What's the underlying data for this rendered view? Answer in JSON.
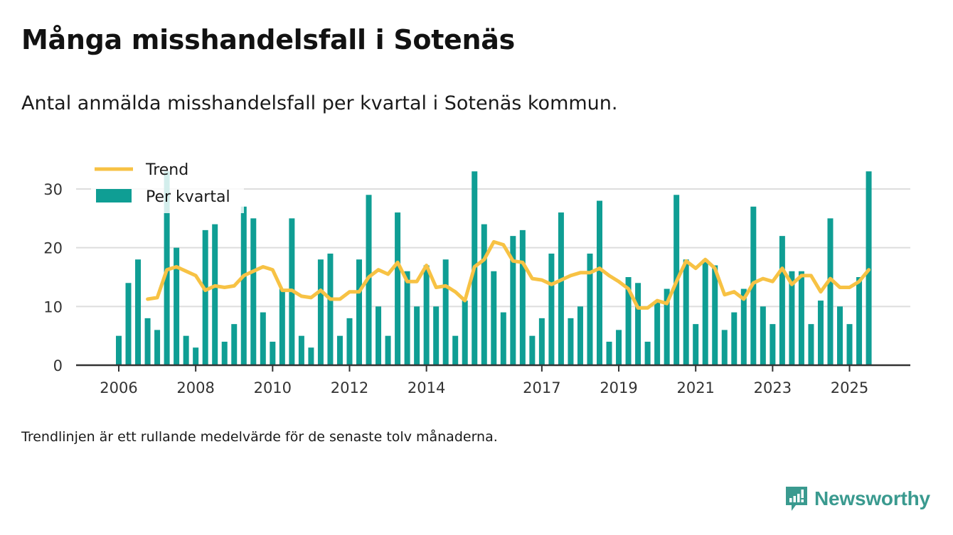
{
  "header": {
    "title": "Många misshandelsfall i Sotenäs",
    "subtitle": "Antal anmälda misshandelsfall per kvartal i Sotenäs kommun."
  },
  "footnote": "Trendlinjen är ett rullande medelvärde för de senaste tolv månaderna.",
  "brand": {
    "name": "Newsworthy",
    "color": "#3a9a8f",
    "icon": "chart-speech-bubble-icon"
  },
  "colors": {
    "bar": "#0f9e94",
    "trend": "#f7c244",
    "grid": "#dddddd",
    "axis": "#333333"
  },
  "chart_data": {
    "type": "bar",
    "title": "Många misshandelsfall i Sotenäs",
    "subtitle": "Antal anmälda misshandelsfall per kvartal i Sotenäs kommun.",
    "xlabel": "",
    "ylabel": "",
    "ylim": [
      0,
      33
    ],
    "yticks": [
      0,
      10,
      20,
      30
    ],
    "grid": true,
    "legend_position": "top-left",
    "x_start": "2006-Q1",
    "xtick_labels": [
      {
        "label": "2006",
        "index": 0
      },
      {
        "label": "2008",
        "index": 8
      },
      {
        "label": "2010",
        "index": 16
      },
      {
        "label": "2012",
        "index": 24
      },
      {
        "label": "2014",
        "index": 32
      },
      {
        "label": "2017",
        "index": 44
      },
      {
        "label": "2019",
        "index": 52
      },
      {
        "label": "2021",
        "index": 60
      },
      {
        "label": "2023",
        "index": 68
      },
      {
        "label": "2025",
        "index": 76
      }
    ],
    "series": [
      {
        "name": "Per kvartal",
        "type": "bar",
        "values": [
          5,
          14,
          18,
          8,
          6,
          33,
          20,
          5,
          3,
          23,
          24,
          4,
          7,
          27,
          25,
          9,
          4,
          13,
          25,
          5,
          3,
          18,
          19,
          5,
          8,
          18,
          29,
          10,
          5,
          26,
          16,
          10,
          17,
          10,
          18,
          5,
          11,
          33,
          24,
          16,
          9,
          22,
          23,
          5,
          8,
          19,
          26,
          8,
          10,
          19,
          28,
          4,
          6,
          15,
          14,
          4,
          11,
          13,
          29,
          18,
          7,
          18,
          17,
          6,
          9,
          13,
          27,
          10,
          7,
          22,
          16,
          16,
          7,
          11,
          25,
          10,
          7,
          15,
          33
        ]
      },
      {
        "name": "Trend",
        "type": "line",
        "start_index": 3,
        "values": [
          11.25,
          11.5,
          16.25,
          16.75,
          16.0,
          15.25,
          12.75,
          13.5,
          13.25,
          13.5,
          15.25,
          16.0,
          16.75,
          16.25,
          12.75,
          12.75,
          11.75,
          11.5,
          12.75,
          11.25,
          11.25,
          12.5,
          12.5,
          15.0,
          16.25,
          15.5,
          17.5,
          14.25,
          14.25,
          17.0,
          13.25,
          13.5,
          12.5,
          11.0,
          16.75,
          18.0,
          21.0,
          20.5,
          17.75,
          17.5,
          14.75,
          14.5,
          13.75,
          14.5,
          15.25,
          15.75,
          15.75,
          16.5,
          15.25,
          14.25,
          13.0,
          9.75,
          9.75,
          11.0,
          10.5,
          14.25,
          17.75,
          16.5,
          18.0,
          16.5,
          12.0,
          12.5,
          11.25,
          14.0,
          14.75,
          14.25,
          16.5,
          13.75,
          15.25,
          15.25,
          12.5,
          14.75,
          13.25,
          13.25,
          14.25,
          16.25
        ]
      }
    ],
    "legend": [
      {
        "label": "Trend",
        "type": "line"
      },
      {
        "label": "Per kvartal",
        "type": "bar"
      }
    ]
  }
}
